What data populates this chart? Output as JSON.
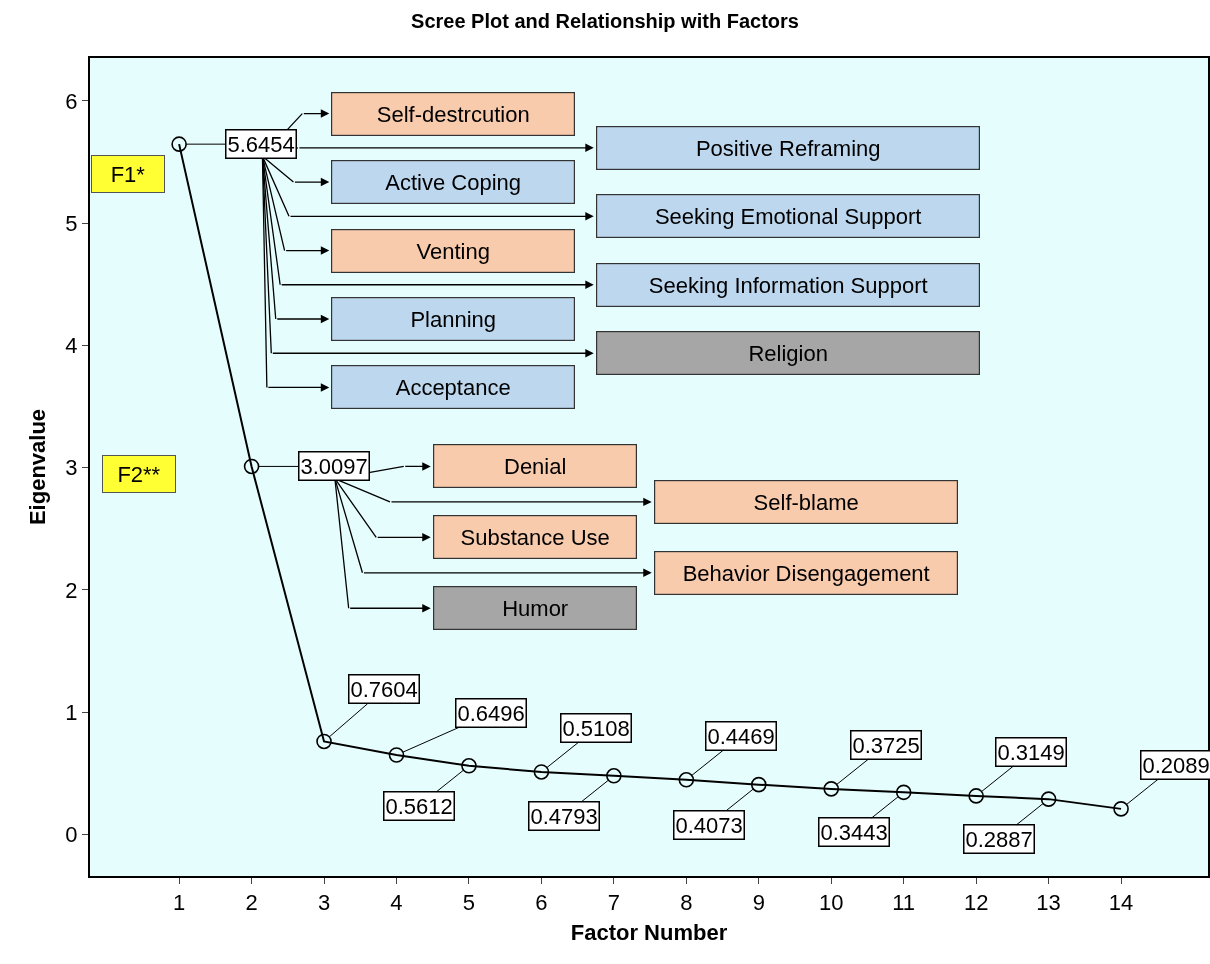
{
  "chart_data": {
    "type": "line",
    "title": "Scree Plot and Relationship with Factors",
    "xlabel": "Factor Number",
    "ylabel": "Eigenvalue",
    "x": [
      1,
      2,
      3,
      4,
      5,
      6,
      7,
      8,
      9,
      10,
      11,
      12,
      13,
      14
    ],
    "values": [
      5.6454,
      3.0097,
      0.7604,
      0.6496,
      0.5612,
      0.5108,
      0.4793,
      0.4469,
      0.4073,
      0.3725,
      0.3443,
      0.3149,
      0.2887,
      0.2089
    ],
    "color": "#000000",
    "marker": "circle",
    "line_style": "solid",
    "data_labels": true,
    "grid": false,
    "xlim": [
      -0.23,
      15.2
    ],
    "ylim": [
      -0.34,
      6.35
    ],
    "xticks": [
      1,
      2,
      3,
      4,
      5,
      6,
      7,
      8,
      9,
      10,
      11,
      12,
      13,
      14
    ],
    "yticks": [
      0,
      1,
      2,
      3,
      4,
      5,
      6
    ],
    "annotations": [
      "F1*",
      "Self-destrcution",
      "Positive Reframing",
      "Active Coping",
      "Seeking Emotional Support",
      "Venting",
      "Seeking Information Support",
      "Planning",
      "Religion",
      "Acceptance",
      "F2**",
      "Denial",
      "Self-blame",
      "Substance Use",
      "Behavior Disengagement",
      "Humor"
    ]
  }
}
